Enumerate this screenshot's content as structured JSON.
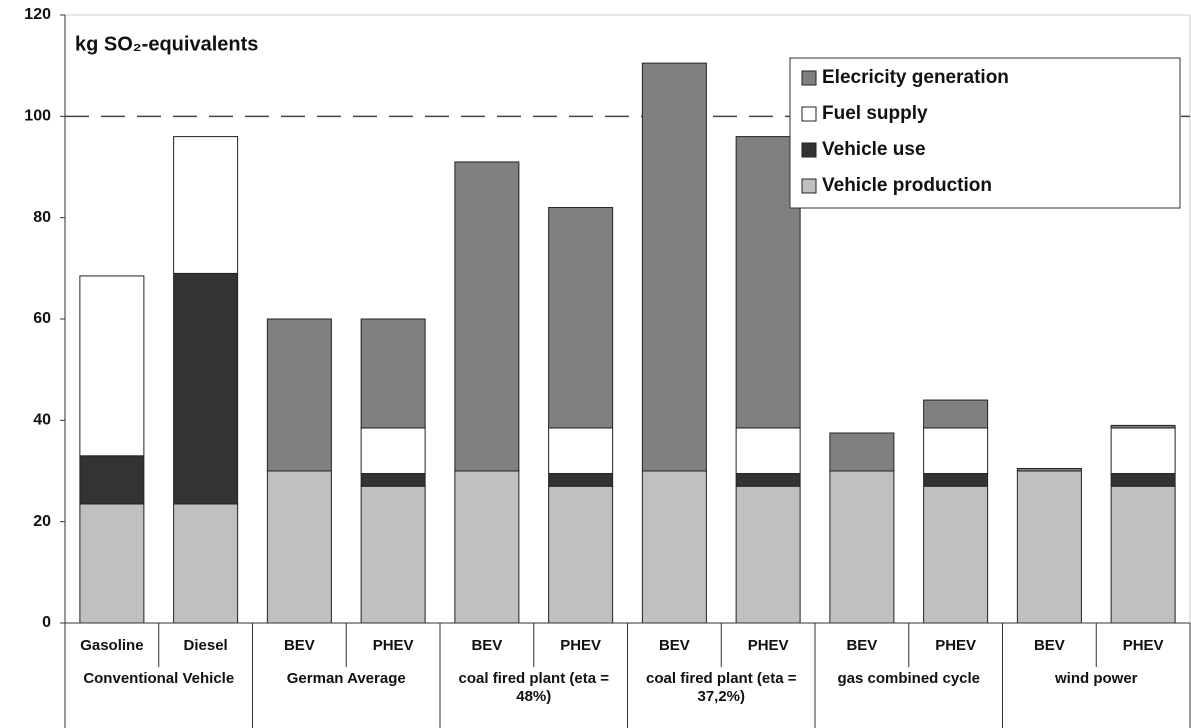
{
  "chart_data": {
    "type": "stacked_bar",
    "y_label": "kg SO₂-equivalents",
    "groups": [
      {
        "label": "Conventional Vehicle",
        "categories": [
          "Gasoline",
          "Diesel"
        ]
      },
      {
        "label": "German Average",
        "categories": [
          "BEV",
          "PHEV"
        ]
      },
      {
        "label": "coal fired plant (eta = 48%)",
        "categories": [
          "BEV",
          "PHEV"
        ]
      },
      {
        "label": "coal fired plant (eta = 37,2%)",
        "categories": [
          "BEV",
          "PHEV"
        ]
      },
      {
        "label": "gas combined cycle",
        "categories": [
          "BEV",
          "PHEV"
        ]
      },
      {
        "label": "wind power",
        "categories": [
          "BEV",
          "PHEV"
        ]
      }
    ],
    "series": [
      {
        "name": "Elecricity generation",
        "color": "#808080",
        "values": [
          0,
          0,
          30,
          21.5,
          61,
          43.5,
          80.5,
          57.5,
          7.5,
          5.5,
          0.5,
          0.5
        ]
      },
      {
        "name": "Fuel supply",
        "color": "#ffffff",
        "values": [
          35.5,
          27,
          0,
          9,
          0,
          9,
          0,
          9,
          0,
          9,
          0,
          9
        ]
      },
      {
        "name": "Vehicle use",
        "color": "#333333",
        "values": [
          9.5,
          45.5,
          0,
          2.5,
          0,
          2.5,
          0,
          2.5,
          0,
          2.5,
          0,
          2.5
        ]
      },
      {
        "name": "Vehicle production",
        "color": "#c0c0c0",
        "values": [
          23.5,
          23.5,
          30,
          27,
          30,
          27,
          30,
          27,
          30,
          27,
          30,
          27
        ]
      }
    ],
    "ylim": [
      0,
      120
    ],
    "yticks": [
      0,
      20,
      40,
      60,
      80,
      100,
      120
    ],
    "reference_line": 100,
    "legend": "top-right"
  }
}
